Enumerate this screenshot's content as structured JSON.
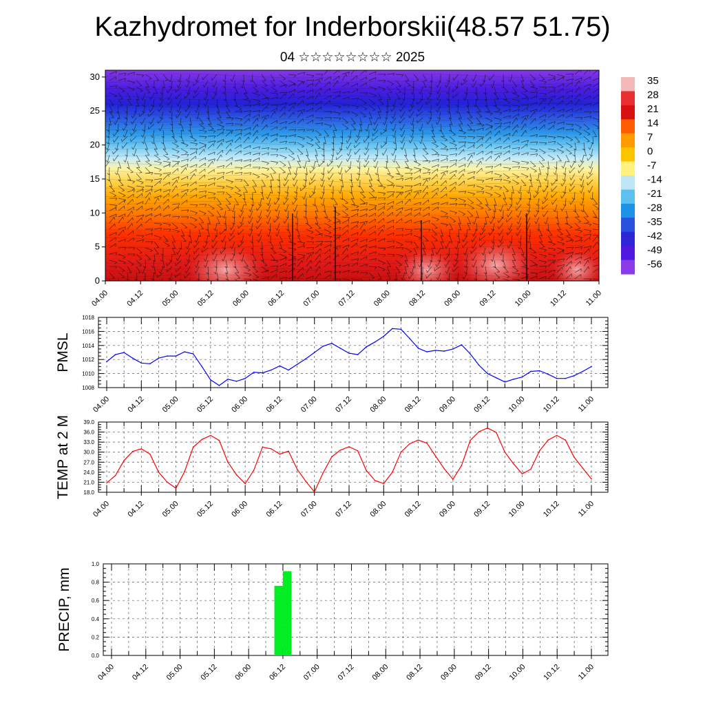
{
  "title": "Kazhydromet for Inderborskii(48.57 51.75)",
  "subtitle": "04 ☆☆☆☆☆☆☆☆ 2025",
  "time_labels": [
    "04.00",
    "04.12",
    "05.00",
    "05.12",
    "06.00",
    "06.12",
    "07.00",
    "07.12",
    "08.00",
    "08.12",
    "09.00",
    "09.12",
    "10.00",
    "10.12",
    "11.00"
  ],
  "chart_data": [
    {
      "type": "heatmap",
      "description_free": true,
      "y_ticks": [
        0,
        5,
        10,
        15,
        20,
        25,
        30
      ],
      "ylim": [
        0,
        31
      ],
      "colorbar_labels": [
        "35",
        "28",
        "21",
        "14",
        "7",
        "0",
        "-7",
        "-14",
        "-21",
        "-28",
        "-35",
        "-42",
        "-49",
        "-56"
      ],
      "colorbar_colors": [
        "#f4b8b8",
        "#e83030",
        "#d81010",
        "#ff5a00",
        "#ff9a00",
        "#ffc400",
        "#fff080",
        "#bfe6f5",
        "#5cc0f0",
        "#1e90e6",
        "#2a50e0",
        "#3024d8",
        "#5018e0",
        "#8a3ae8"
      ]
    },
    {
      "type": "line",
      "ylabel": "PMSL",
      "ylim": [
        1008,
        1018
      ],
      "y_ticks": [
        1008,
        1010,
        1012,
        1014,
        1016,
        1018
      ],
      "color": "#0000ff",
      "x": [
        0,
        3,
        6,
        9,
        12,
        15,
        18,
        21,
        24,
        27,
        30,
        33,
        36,
        39,
        42,
        45,
        48,
        51,
        54,
        57,
        60,
        63,
        66,
        69,
        72,
        75,
        78,
        81,
        84,
        87,
        90,
        93,
        96,
        99,
        102,
        105,
        108,
        111,
        114,
        117,
        120,
        123,
        126,
        129,
        132,
        135,
        138,
        141,
        144,
        147,
        150,
        153,
        156,
        159,
        162,
        165,
        168
      ],
      "values": [
        1011.7,
        1012.7,
        1013.0,
        1012.2,
        1011.5,
        1011.4,
        1012.2,
        1012.5,
        1012.5,
        1013.1,
        1012.8,
        1011.0,
        1009.1,
        1008.3,
        1009.2,
        1008.9,
        1009.3,
        1010.2,
        1010.1,
        1010.5,
        1011.1,
        1010.5,
        1011.3,
        1012.1,
        1013.0,
        1013.9,
        1014.3,
        1013.6,
        1012.9,
        1012.7,
        1013.8,
        1014.5,
        1015.3,
        1016.4,
        1016.3,
        1015.0,
        1013.6,
        1013.1,
        1013.3,
        1013.2,
        1013.5,
        1014.1,
        1012.8,
        1011.2,
        1010.0,
        1009.4,
        1008.8,
        1009.2,
        1009.5,
        1010.3,
        1010.4,
        1009.9,
        1009.3,
        1009.3,
        1009.7,
        1010.3,
        1011.0
      ]
    },
    {
      "type": "line",
      "ylabel": "TEMP at 2 M",
      "ylim": [
        18.0,
        39.0
      ],
      "y_ticks": [
        "18.0",
        "21.0",
        "24.0",
        "27.0",
        "30.0",
        "33.0",
        "36.0",
        "39.0"
      ],
      "color": "#ff0000",
      "x": [
        0,
        3,
        6,
        9,
        12,
        15,
        18,
        21,
        24,
        27,
        30,
        33,
        36,
        39,
        42,
        45,
        48,
        51,
        54,
        57,
        60,
        63,
        66,
        69,
        72,
        75,
        78,
        81,
        84,
        87,
        90,
        93,
        96,
        99,
        102,
        105,
        108,
        111,
        114,
        117,
        120,
        123,
        126,
        129,
        132,
        135,
        138,
        141,
        144,
        147,
        150,
        153,
        156,
        159,
        162,
        165,
        168
      ],
      "values": [
        20.8,
        23.0,
        27.5,
        30.2,
        31.0,
        29.4,
        24.0,
        21.0,
        19.2,
        24.2,
        31.5,
        33.8,
        35.0,
        33.5,
        27.0,
        23.2,
        20.6,
        24.6,
        31.5,
        31.0,
        29.4,
        30.3,
        24.9,
        21.3,
        18.1,
        23.8,
        28.6,
        30.6,
        31.6,
        30.4,
        24.5,
        21.5,
        20.6,
        24.0,
        30.0,
        32.5,
        33.6,
        32.7,
        28.8,
        25.0,
        21.9,
        26.0,
        33.5,
        36.1,
        37.2,
        35.9,
        30.0,
        26.5,
        23.5,
        24.9,
        30.4,
        33.6,
        35.0,
        33.6,
        28.5,
        25.2,
        22.0
      ]
    },
    {
      "type": "bar",
      "ylabel": "PRECIP, mm",
      "ylim": [
        0.0,
        1.0
      ],
      "y_ticks": [
        "0.0",
        "0.2",
        "0.4",
        "0.6",
        "0.8",
        "1.0"
      ],
      "color": "#00ee22",
      "bars": [
        {
          "x_start": 57,
          "x_end": 60,
          "value": 0.76
        },
        {
          "x_start": 60,
          "x_end": 63,
          "value": 0.92
        }
      ]
    }
  ]
}
